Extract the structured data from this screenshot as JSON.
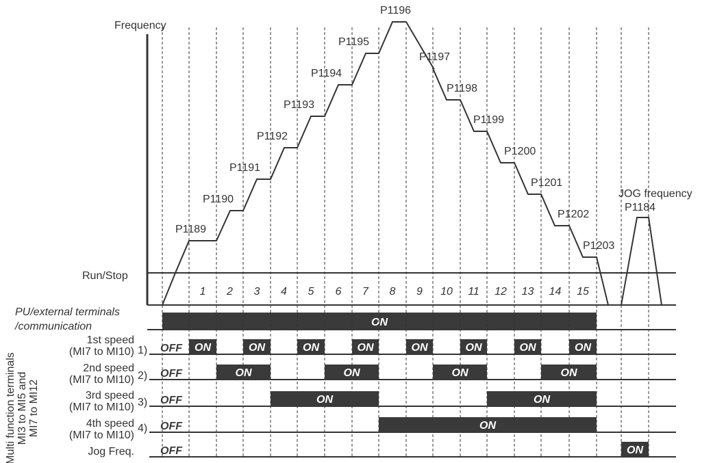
{
  "axis": {
    "y_label": "Frequency"
  },
  "params": [
    "P1189",
    "P1190",
    "P1191",
    "P1192",
    "P1193",
    "P1194",
    "P1195",
    "P1196",
    "P1197",
    "P1198",
    "P1199",
    "P1200",
    "P1201",
    "P1202",
    "P1203"
  ],
  "jog": {
    "title": "JOG frequency",
    "param": "P1184"
  },
  "run_stop": "Run/Stop",
  "steps": [
    "1",
    "2",
    "3",
    "4",
    "5",
    "6",
    "7",
    "8",
    "9",
    "10",
    "11",
    "12",
    "13",
    "14",
    "15"
  ],
  "pu": {
    "line1": "PU/external terminals",
    "line2": "/communication",
    "state": "ON"
  },
  "side_label": {
    "line1": "Multi function terminals",
    "line2": "MI3 to MI5 and",
    "line3": "MI7 to MI12"
  },
  "rows": [
    {
      "name": "1st  speed",
      "sub": "(MI7 to MI10)",
      "idx": "1)",
      "off": "OFF",
      "on": "ON"
    },
    {
      "name": "2nd  speed",
      "sub": "(MI7 to MI10)",
      "idx": "2)",
      "off": "OFF",
      "on": "ON"
    },
    {
      "name": "3rd speed",
      "sub": "(MI7 to MI10)",
      "idx": "3)",
      "off": "OFF",
      "on": "ON"
    },
    {
      "name": "4th speed",
      "sub": "(MI7 to MI10)",
      "idx": "4)",
      "off": "OFF",
      "on": "ON"
    },
    {
      "name": "Jog Freq.",
      "sub": "",
      "idx": "",
      "off": "OFF",
      "on": "ON"
    }
  ],
  "colors": {
    "line": "#333333",
    "bar": "#3a3a3a",
    "bar_text": "#ffffff"
  }
}
